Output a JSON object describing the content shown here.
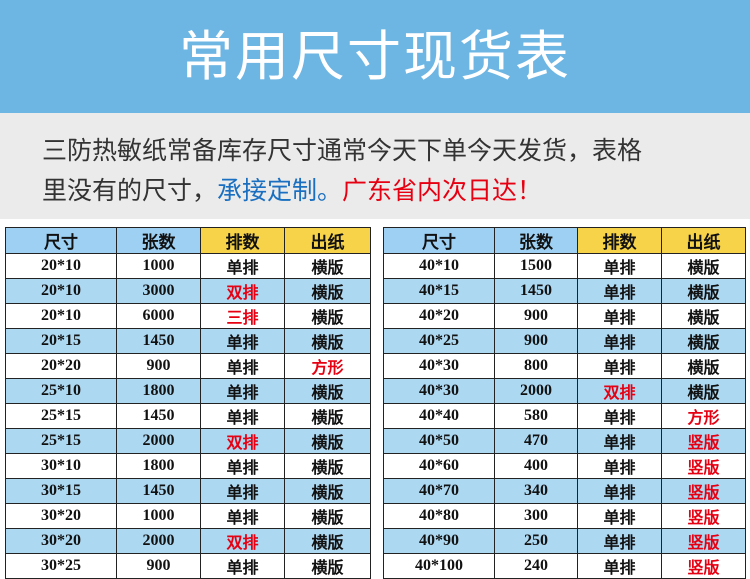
{
  "header": {
    "title": "常用尺寸现货表"
  },
  "intro": {
    "line1": "三防热敏纸常备库存尺寸通常今天下单今天发货，表格",
    "line2": [
      {
        "text": "里没有的尺寸，",
        "color": "#333333"
      },
      {
        "text": "承接定制。",
        "color": "#1a6fc0"
      },
      {
        "text": "广东省内次日达！",
        "color": "#e60012"
      }
    ]
  },
  "tables": [
    {
      "columns": [
        "尺寸",
        "张数",
        "排数",
        "出纸"
      ],
      "rows": [
        [
          "20*10",
          "1000",
          "单排",
          "横版"
        ],
        [
          "20*10",
          "3000",
          {
            "text": "双排",
            "color": "#e60012"
          },
          "横版"
        ],
        [
          "20*10",
          "6000",
          {
            "text": "三排",
            "color": "#e60012"
          },
          "横版"
        ],
        [
          "20*15",
          "1450",
          "单排",
          "横版"
        ],
        [
          "20*20",
          "900",
          "单排",
          {
            "text": "方形",
            "color": "#e60012"
          }
        ],
        [
          "25*10",
          "1800",
          "单排",
          "横版"
        ],
        [
          "25*15",
          "1450",
          "单排",
          "横版"
        ],
        [
          "25*15",
          "2000",
          {
            "text": "双排",
            "color": "#e60012"
          },
          "横版"
        ],
        [
          "30*10",
          "1800",
          "单排",
          "横版"
        ],
        [
          "30*15",
          "1450",
          "单排",
          "横版"
        ],
        [
          "30*20",
          "1000",
          "单排",
          "横版"
        ],
        [
          "30*20",
          "2000",
          {
            "text": "双排",
            "color": "#e60012"
          },
          "横版"
        ],
        [
          "30*25",
          "900",
          "单排",
          "横版"
        ]
      ]
    },
    {
      "columns": [
        "尺寸",
        "张数",
        "排数",
        "出纸"
      ],
      "rows": [
        [
          "40*10",
          "1500",
          "单排",
          "横版"
        ],
        [
          "40*15",
          "1450",
          "单排",
          "横版"
        ],
        [
          "40*20",
          "900",
          "单排",
          "横版"
        ],
        [
          "40*25",
          "900",
          "单排",
          "横版"
        ],
        [
          "40*30",
          "800",
          "单排",
          "横版"
        ],
        [
          "40*30",
          "2000",
          {
            "text": "双排",
            "color": "#e60012"
          },
          "横版"
        ],
        [
          "40*40",
          "580",
          "单排",
          {
            "text": "方形",
            "color": "#e60012"
          }
        ],
        [
          "40*50",
          "470",
          "单排",
          {
            "text": "竖版",
            "color": "#e60012"
          }
        ],
        [
          "40*60",
          "400",
          "单排",
          {
            "text": "竖版",
            "color": "#e60012"
          }
        ],
        [
          "40*70",
          "340",
          "单排",
          {
            "text": "竖版",
            "color": "#e60012"
          }
        ],
        [
          "40*80",
          "300",
          "单排",
          {
            "text": "竖版",
            "color": "#e60012"
          }
        ],
        [
          "40*90",
          "250",
          "单排",
          {
            "text": "竖版",
            "color": "#e60012"
          }
        ],
        [
          "40*100",
          "240",
          "单排",
          {
            "text": "竖版",
            "color": "#e60012"
          }
        ]
      ]
    }
  ]
}
